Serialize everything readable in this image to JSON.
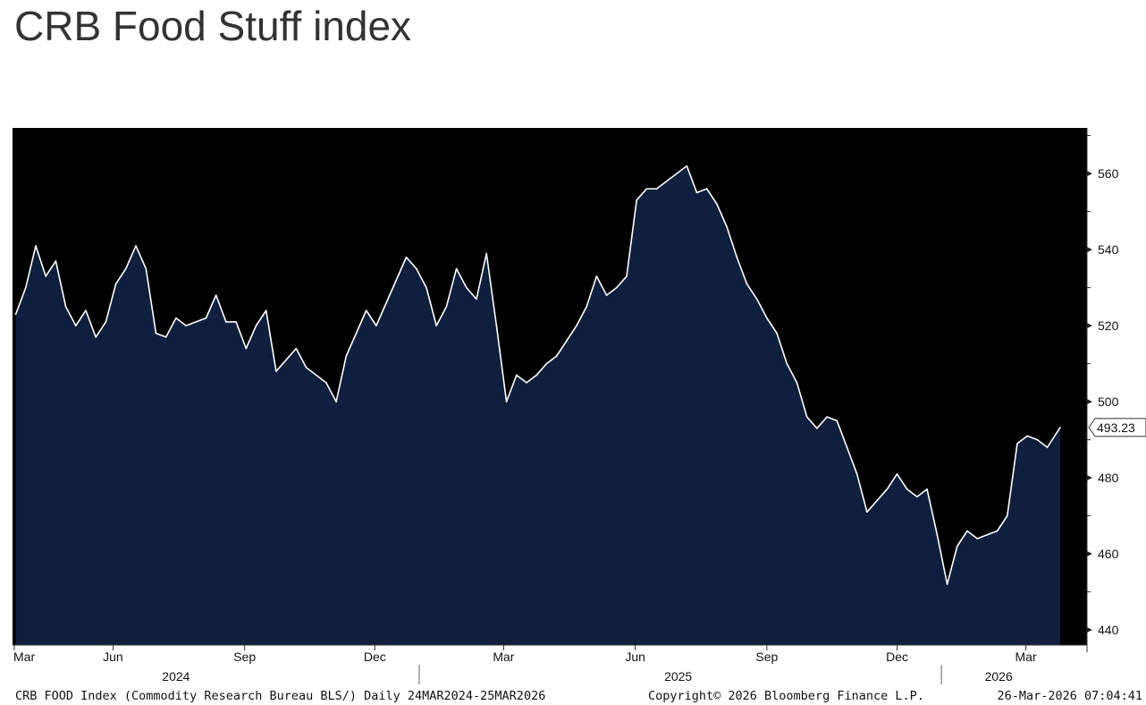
{
  "page": {
    "title": "CRB Food Stuff index"
  },
  "chart_data": {
    "type": "area",
    "title": "CRB Food Stuff index",
    "x_start": "2024-03-24",
    "x_end": "2026-03-25",
    "ylim": [
      436,
      572
    ],
    "yticks": [
      440,
      460,
      480,
      500,
      520,
      540,
      560
    ],
    "ytick_labels": [
      "440",
      "460",
      "480",
      "500",
      "520",
      "540",
      "560"
    ],
    "xticks": [
      {
        "label": "Mar",
        "date": "2024-03-01"
      },
      {
        "label": "Jun",
        "date": "2024-06-01"
      },
      {
        "label": "Sep",
        "date": "2024-09-01"
      },
      {
        "label": "Dec",
        "date": "2024-12-01"
      },
      {
        "label": "Mar",
        "date": "2025-03-01"
      },
      {
        "label": "Jun",
        "date": "2025-06-01"
      },
      {
        "label": "Sep",
        "date": "2025-09-01"
      },
      {
        "label": "Dec",
        "date": "2025-12-01"
      },
      {
        "label": "Mar",
        "date": "2026-03-01"
      }
    ],
    "year_labels": [
      {
        "label": "2024",
        "date": "2024-07-15"
      },
      {
        "label": "2025",
        "date": "2025-07-01"
      },
      {
        "label": "2026",
        "date": "2026-02-10"
      }
    ],
    "last_value_label": "493.23",
    "grid": false,
    "series": [
      {
        "points": [
          [
            "2024-03-25",
            523
          ],
          [
            "2024-04-01",
            530
          ],
          [
            "2024-04-08",
            541
          ],
          [
            "2024-04-15",
            533
          ],
          [
            "2024-04-22",
            537
          ],
          [
            "2024-04-29",
            525
          ],
          [
            "2024-05-06",
            520
          ],
          [
            "2024-05-13",
            524
          ],
          [
            "2024-05-20",
            517
          ],
          [
            "2024-05-27",
            521
          ],
          [
            "2024-06-03",
            531
          ],
          [
            "2024-06-10",
            535
          ],
          [
            "2024-06-17",
            541
          ],
          [
            "2024-06-24",
            535
          ],
          [
            "2024-07-01",
            518
          ],
          [
            "2024-07-08",
            517
          ],
          [
            "2024-07-15",
            522
          ],
          [
            "2024-07-22",
            520
          ],
          [
            "2024-07-29",
            521
          ],
          [
            "2024-08-05",
            522
          ],
          [
            "2024-08-12",
            528
          ],
          [
            "2024-08-19",
            521
          ],
          [
            "2024-08-26",
            521
          ],
          [
            "2024-09-02",
            514
          ],
          [
            "2024-09-09",
            520
          ],
          [
            "2024-09-16",
            524
          ],
          [
            "2024-09-23",
            508
          ],
          [
            "2024-09-30",
            511
          ],
          [
            "2024-10-07",
            514
          ],
          [
            "2024-10-14",
            509
          ],
          [
            "2024-10-21",
            507
          ],
          [
            "2024-10-28",
            505
          ],
          [
            "2024-11-04",
            500
          ],
          [
            "2024-11-11",
            512
          ],
          [
            "2024-11-18",
            518
          ],
          [
            "2024-11-25",
            524
          ],
          [
            "2024-12-02",
            520
          ],
          [
            "2024-12-09",
            526
          ],
          [
            "2024-12-16",
            532
          ],
          [
            "2024-12-23",
            538
          ],
          [
            "2024-12-30",
            535
          ],
          [
            "2025-01-06",
            530
          ],
          [
            "2025-01-13",
            520
          ],
          [
            "2025-01-20",
            525
          ],
          [
            "2025-01-27",
            535
          ],
          [
            "2025-02-03",
            530
          ],
          [
            "2025-02-10",
            527
          ],
          [
            "2025-02-17",
            539
          ],
          [
            "2025-02-24",
            520
          ],
          [
            "2025-03-03",
            500
          ],
          [
            "2025-03-10",
            507
          ],
          [
            "2025-03-17",
            505
          ],
          [
            "2025-03-24",
            507
          ],
          [
            "2025-03-31",
            510
          ],
          [
            "2025-04-07",
            512
          ],
          [
            "2025-04-14",
            516
          ],
          [
            "2025-04-21",
            520
          ],
          [
            "2025-04-28",
            525
          ],
          [
            "2025-05-05",
            533
          ],
          [
            "2025-05-12",
            528
          ],
          [
            "2025-05-19",
            530
          ],
          [
            "2025-05-26",
            533
          ],
          [
            "2025-06-02",
            553
          ],
          [
            "2025-06-09",
            556
          ],
          [
            "2025-06-16",
            556
          ],
          [
            "2025-06-23",
            558
          ],
          [
            "2025-06-30",
            560
          ],
          [
            "2025-07-07",
            562
          ],
          [
            "2025-07-14",
            555
          ],
          [
            "2025-07-21",
            556
          ],
          [
            "2025-07-28",
            552
          ],
          [
            "2025-08-04",
            546
          ],
          [
            "2025-08-11",
            538
          ],
          [
            "2025-08-18",
            531
          ],
          [
            "2025-08-25",
            527
          ],
          [
            "2025-09-01",
            522
          ],
          [
            "2025-09-08",
            518
          ],
          [
            "2025-09-15",
            510
          ],
          [
            "2025-09-22",
            505
          ],
          [
            "2025-09-29",
            496
          ],
          [
            "2025-10-06",
            493
          ],
          [
            "2025-10-13",
            496
          ],
          [
            "2025-10-20",
            495
          ],
          [
            "2025-10-27",
            488
          ],
          [
            "2025-11-03",
            481
          ],
          [
            "2025-11-10",
            471
          ],
          [
            "2025-11-17",
            474
          ],
          [
            "2025-11-24",
            477
          ],
          [
            "2025-12-01",
            481
          ],
          [
            "2025-12-08",
            477
          ],
          [
            "2025-12-15",
            475
          ],
          [
            "2025-12-22",
            477
          ],
          [
            "2025-12-29",
            465
          ],
          [
            "2026-01-05",
            452
          ],
          [
            "2026-01-12",
            462
          ],
          [
            "2026-01-19",
            466
          ],
          [
            "2026-01-26",
            464
          ],
          [
            "2026-02-02",
            465
          ],
          [
            "2026-02-09",
            466
          ],
          [
            "2026-02-16",
            470
          ],
          [
            "2026-02-23",
            489
          ],
          [
            "2026-03-02",
            491
          ],
          [
            "2026-03-09",
            490
          ],
          [
            "2026-03-16",
            488
          ],
          [
            "2026-03-25",
            493.23
          ]
        ]
      }
    ]
  },
  "footer": {
    "left": "CRB FOOD Index (Commodity Research Bureau BLS/) Daily 24MAR2024-25MAR2026",
    "center": "Copyright© 2026 Bloomberg Finance L.P.",
    "right": "26-Mar-2026 07:04:41"
  },
  "colors": {
    "plot_bg": "#000000",
    "area_fill": "#0f1f3d",
    "line": "#ffffff",
    "title": "#333333",
    "axis_text": "#111111"
  }
}
